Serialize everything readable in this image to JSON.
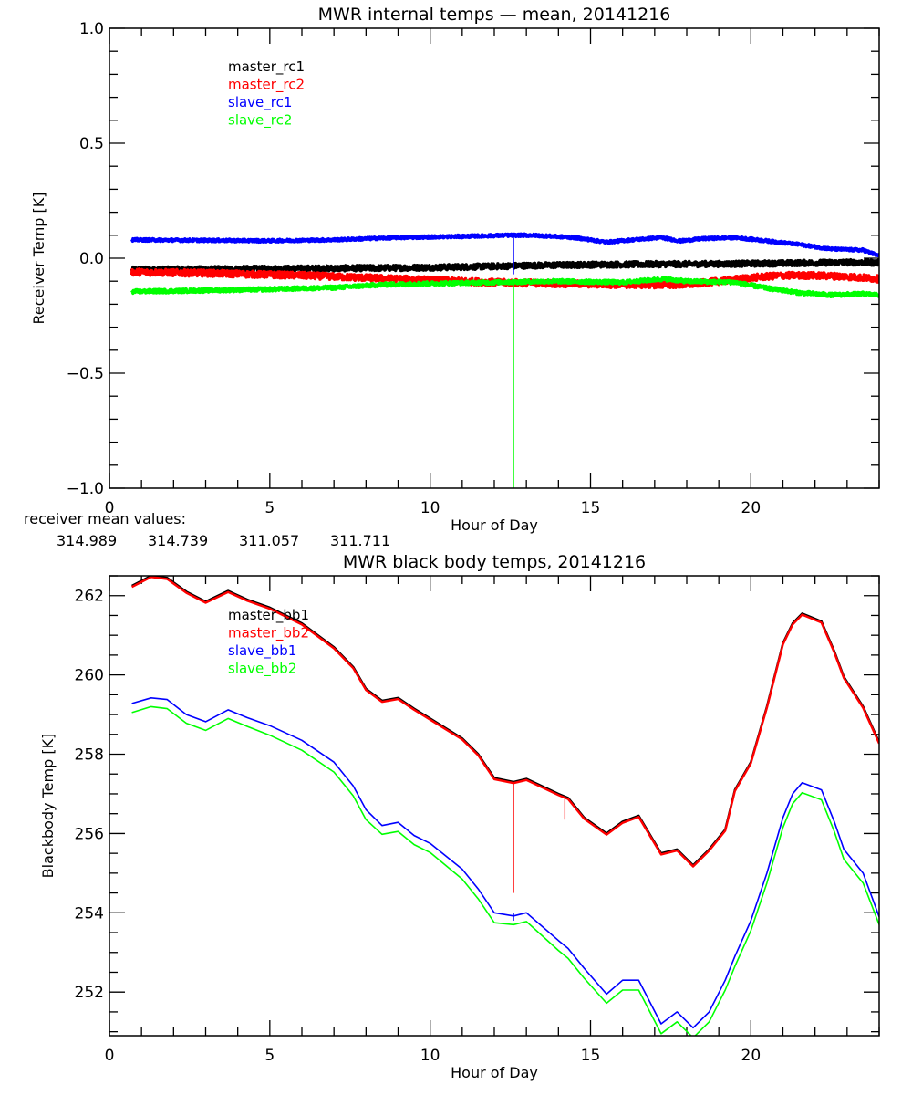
{
  "chart_data": [
    {
      "type": "line",
      "title": "MWR internal temps — mean, 20141216",
      "xlabel": "Hour of Day",
      "ylabel": "Receiver Temp [K]",
      "xlim": [
        0,
        24
      ],
      "ylim": [
        -1.0,
        1.0
      ],
      "x_ticks": [
        0,
        5,
        10,
        15,
        20
      ],
      "x_tick_labels": [
        "0",
        "5",
        "10",
        "15",
        "20"
      ],
      "y_ticks": [
        -1.0,
        -0.5,
        0.0,
        0.5,
        1.0
      ],
      "y_tick_labels": [
        "−1.0",
        "−0.5",
        "0.0",
        "0.5",
        "1.0"
      ],
      "grid": false,
      "legend_position": "top-left",
      "noisy": true,
      "series": [
        {
          "name": "master_rc1",
          "color": "#000000",
          "noise": 0.012,
          "x": [
            0.7,
            3,
            6,
            9,
            11,
            13,
            15,
            17,
            19,
            21,
            23,
            24
          ],
          "y": [
            -0.05,
            -0.048,
            -0.045,
            -0.042,
            -0.038,
            -0.032,
            -0.028,
            -0.026,
            -0.025,
            -0.022,
            -0.018,
            -0.02
          ]
        },
        {
          "name": "master_rc2",
          "color": "#ff0000",
          "noise": 0.014,
          "x": [
            0.7,
            3,
            6,
            8,
            10,
            12,
            14,
            16,
            18,
            19,
            20,
            21,
            22,
            23,
            24
          ],
          "y": [
            -0.06,
            -0.065,
            -0.075,
            -0.085,
            -0.095,
            -0.105,
            -0.11,
            -0.115,
            -0.115,
            -0.1,
            -0.085,
            -0.075,
            -0.075,
            -0.08,
            -0.09
          ]
        },
        {
          "name": "slave_rc1",
          "color": "#0000ff",
          "noise": 0.006,
          "x": [
            0.7,
            3,
            5,
            7,
            9,
            11,
            12.5,
            13.2,
            14.5,
            15.5,
            16.3,
            17.2,
            17.8,
            18.5,
            19.5,
            20.2,
            21.5,
            22.5,
            23.5,
            24
          ],
          "y": [
            0.08,
            0.078,
            0.076,
            0.08,
            0.09,
            0.095,
            0.1,
            0.1,
            0.09,
            0.07,
            0.08,
            0.09,
            0.075,
            0.085,
            0.09,
            0.08,
            0.06,
            0.04,
            0.035,
            0.01
          ]
        },
        {
          "name": "slave_rc2",
          "color": "#00ff00",
          "noise": 0.008,
          "x": [
            0.7,
            3,
            5,
            7,
            8.5,
            10,
            12,
            14,
            16,
            17.3,
            18,
            19.5,
            20.5,
            21.5,
            22.5,
            23.5,
            24
          ],
          "y": [
            -0.145,
            -0.14,
            -0.135,
            -0.128,
            -0.115,
            -0.11,
            -0.105,
            -0.1,
            -0.105,
            -0.09,
            -0.1,
            -0.105,
            -0.13,
            -0.15,
            -0.16,
            -0.155,
            -0.16
          ]
        }
      ],
      "spikes": [
        {
          "series": "slave_rc1",
          "x": 12.6,
          "y_from": 0.1,
          "y_to": -0.07
        },
        {
          "series": "slave_rc2",
          "x": 12.6,
          "y_from": -0.1,
          "y_to": -1.0
        }
      ]
    },
    {
      "type": "line",
      "title": "MWR black body temps, 20141216",
      "xlabel": "Hour of Day",
      "ylabel": "Blackbody Temp [K]",
      "xlim": [
        0,
        24
      ],
      "ylim": [
        250.9,
        262.5
      ],
      "x_ticks": [
        0,
        5,
        10,
        15,
        20
      ],
      "x_tick_labels": [
        "0",
        "5",
        "10",
        "15",
        "20"
      ],
      "y_ticks": [
        252,
        254,
        256,
        258,
        260,
        262
      ],
      "y_tick_labels": [
        "252",
        "254",
        "256",
        "258",
        "260",
        "262"
      ],
      "grid": false,
      "legend_position": "top-left",
      "series": [
        {
          "name": "master_bb1",
          "color": "#000000",
          "x": [
            0.7,
            1.3,
            1.8,
            2.4,
            3.0,
            3.7,
            4.3,
            5.0,
            6.0,
            7.0,
            7.6,
            8.0,
            8.5,
            9.0,
            9.5,
            10.0,
            11.0,
            11.5,
            12.0,
            12.6,
            13.0,
            14.0,
            14.3,
            14.8,
            15.5,
            16.0,
            16.5,
            17.2,
            17.7,
            18.2,
            18.7,
            19.2,
            19.5,
            20.0,
            20.5,
            21.0,
            21.3,
            21.6,
            22.2,
            22.6,
            22.9,
            23.5,
            24.0
          ],
          "y": [
            262.25,
            262.5,
            262.45,
            262.1,
            261.85,
            262.12,
            261.9,
            261.7,
            261.3,
            260.7,
            260.2,
            259.65,
            259.35,
            259.42,
            259.15,
            258.9,
            258.4,
            258.0,
            257.4,
            257.3,
            257.38,
            257.0,
            256.9,
            256.4,
            256.0,
            256.3,
            256.45,
            255.5,
            255.6,
            255.2,
            255.6,
            256.1,
            257.1,
            257.8,
            259.2,
            260.8,
            261.3,
            261.55,
            261.35,
            260.6,
            259.95,
            259.2,
            258.3
          ]
        },
        {
          "name": "master_bb2",
          "color": "#ff0000",
          "x": [
            0.7,
            1.3,
            1.8,
            2.4,
            3.0,
            3.7,
            4.3,
            5.0,
            6.0,
            7.0,
            7.6,
            8.0,
            8.5,
            9.0,
            9.5,
            10.0,
            11.0,
            11.5,
            12.0,
            12.6,
            13.0,
            14.0,
            14.3,
            14.8,
            15.5,
            16.0,
            16.5,
            17.2,
            17.7,
            18.2,
            18.7,
            19.2,
            19.5,
            20.0,
            20.5,
            21.0,
            21.3,
            21.6,
            22.2,
            22.6,
            22.9,
            23.5,
            24.0
          ],
          "y": [
            262.22,
            262.47,
            262.42,
            262.07,
            261.82,
            262.09,
            261.87,
            261.67,
            261.27,
            260.67,
            260.17,
            259.62,
            259.32,
            259.39,
            259.12,
            258.87,
            258.37,
            257.97,
            257.37,
            257.27,
            257.35,
            256.97,
            256.87,
            256.37,
            255.97,
            256.27,
            256.42,
            255.47,
            255.57,
            255.17,
            255.57,
            256.07,
            257.07,
            257.77,
            259.17,
            260.77,
            261.27,
            261.52,
            261.32,
            260.57,
            259.92,
            259.17,
            258.27
          ]
        },
        {
          "name": "slave_bb1",
          "color": "#0000ff",
          "x": [
            0.7,
            1.3,
            1.8,
            2.4,
            3.0,
            3.7,
            4.3,
            5.0,
            6.0,
            7.0,
            7.6,
            8.0,
            8.5,
            9.0,
            9.5,
            10.0,
            11.0,
            11.5,
            12.0,
            12.6,
            13.0,
            14.0,
            14.3,
            14.8,
            15.5,
            16.0,
            16.5,
            17.2,
            17.7,
            18.2,
            18.7,
            19.2,
            19.5,
            20.0,
            20.5,
            21.0,
            21.3,
            21.6,
            22.2,
            22.6,
            22.9,
            23.5,
            24.0
          ],
          "y": [
            259.28,
            259.42,
            259.38,
            259.0,
            258.82,
            259.12,
            258.92,
            258.72,
            258.35,
            257.8,
            257.2,
            256.6,
            256.2,
            256.28,
            255.95,
            255.75,
            255.1,
            254.6,
            254.0,
            253.92,
            254.0,
            253.3,
            253.1,
            252.6,
            251.95,
            252.3,
            252.3,
            251.2,
            251.5,
            251.1,
            251.5,
            252.3,
            252.9,
            253.8,
            255.0,
            256.4,
            257.0,
            257.28,
            257.1,
            256.3,
            255.6,
            255.0,
            253.9
          ]
        },
        {
          "name": "slave_bb2",
          "color": "#00ff00",
          "x": [
            0.7,
            1.3,
            1.8,
            2.4,
            3.0,
            3.7,
            4.3,
            5.0,
            6.0,
            7.0,
            7.6,
            8.0,
            8.5,
            9.0,
            9.5,
            10.0,
            11.0,
            11.5,
            12.0,
            12.6,
            13.0,
            14.0,
            14.3,
            14.8,
            15.5,
            16.0,
            16.5,
            17.2,
            17.7,
            18.2,
            18.7,
            19.2,
            19.5,
            20.0,
            20.5,
            21.0,
            21.3,
            21.6,
            22.2,
            22.6,
            22.9,
            23.5,
            24.0
          ],
          "y": [
            259.05,
            259.2,
            259.15,
            258.78,
            258.6,
            258.9,
            258.7,
            258.48,
            258.1,
            257.55,
            256.95,
            256.35,
            255.98,
            256.05,
            255.72,
            255.52,
            254.85,
            254.35,
            253.75,
            253.7,
            253.78,
            253.05,
            252.85,
            252.35,
            251.72,
            252.05,
            252.05,
            250.95,
            251.25,
            250.85,
            251.25,
            252.05,
            252.65,
            253.55,
            254.75,
            256.15,
            256.75,
            257.03,
            256.85,
            256.05,
            255.35,
            254.75,
            253.7
          ]
        }
      ],
      "spikes": [
        {
          "series": "master_bb2",
          "x": 12.6,
          "y_from": 257.27,
          "y_to": 254.5
        },
        {
          "series": "master_bb2",
          "x": 14.2,
          "y_from": 256.95,
          "y_to": 256.35
        },
        {
          "series": "slave_bb1",
          "x": 12.6,
          "y_from": 254.0,
          "y_to": 253.8
        }
      ]
    }
  ],
  "annotation": {
    "label": "receiver mean values:",
    "values": [
      {
        "text": "314.989",
        "color": "#000000"
      },
      {
        "text": "314.739",
        "color": "#ff0000"
      },
      {
        "text": "311.057",
        "color": "#0000ff"
      },
      {
        "text": "311.711",
        "color": "#00ff00"
      }
    ]
  }
}
